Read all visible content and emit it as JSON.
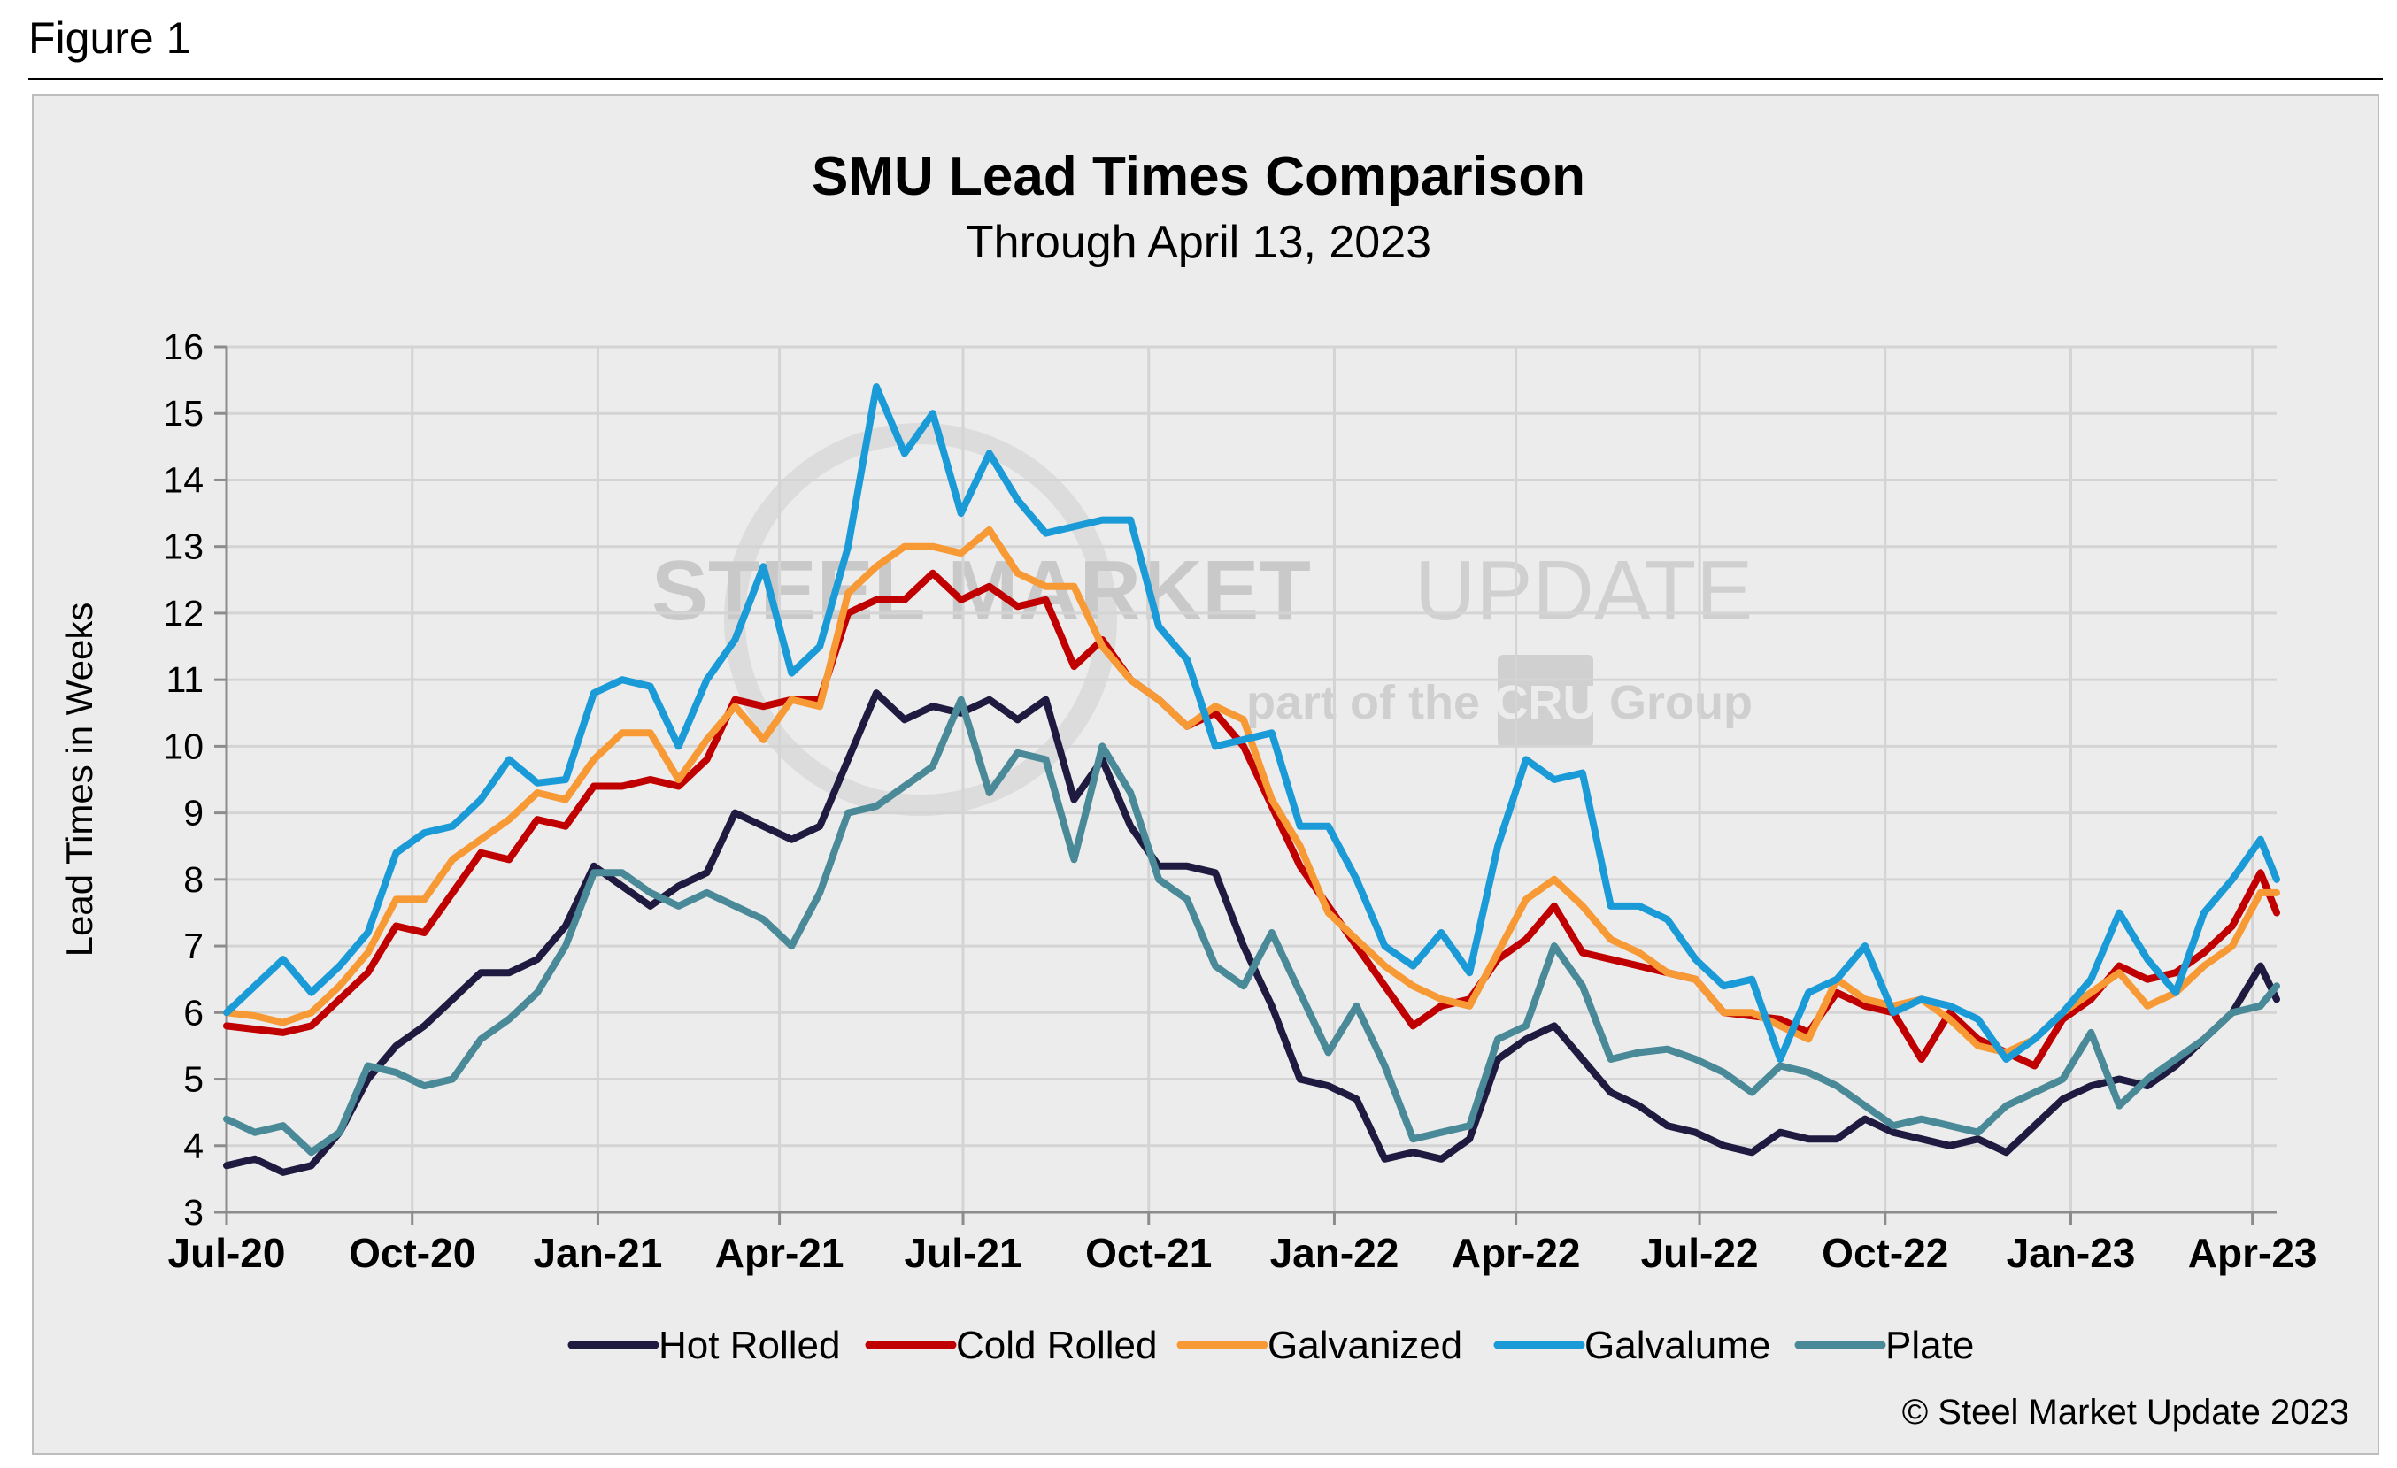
{
  "figure_label": "Figure 1",
  "copyright": "© Steel Market Update 2023",
  "watermark": {
    "line1_bold": "STEEL MARKET",
    "line1_thin": "UPDATE",
    "line2_pre": "part of the",
    "line2_logo": "CRU",
    "line2_post": "Group"
  },
  "chart_data": {
    "type": "line",
    "title": "SMU Lead Times Comparison",
    "subtitle": "Through April 13, 2023",
    "ylabel": "Lead Times in Weeks",
    "xlabel": "",
    "ylim": [
      3,
      16
    ],
    "yticks": [
      3,
      4,
      5,
      6,
      7,
      8,
      9,
      10,
      11,
      12,
      13,
      14,
      15,
      16
    ],
    "grid": true,
    "legend_position": "bottom",
    "x_tick_labels": [
      "Jul-20",
      "Oct-20",
      "Jan-21",
      "Apr-21",
      "Jul-21",
      "Oct-21",
      "Jan-22",
      "Apr-22",
      "Jul-22",
      "Oct-22",
      "Jan-23",
      "Apr-23"
    ],
    "x_tick_dates": [
      "2020-07-01",
      "2020-10-01",
      "2021-01-01",
      "2021-04-01",
      "2021-07-01",
      "2021-10-01",
      "2022-01-01",
      "2022-04-01",
      "2022-07-01",
      "2022-10-01",
      "2023-01-01",
      "2023-04-01"
    ],
    "x_range": [
      "2020-07-01",
      "2023-04-13"
    ],
    "dates": [
      "2020-07-01",
      "2020-07-15",
      "2020-07-29",
      "2020-08-12",
      "2020-08-26",
      "2020-09-09",
      "2020-09-23",
      "2020-10-07",
      "2020-10-21",
      "2020-11-04",
      "2020-11-18",
      "2020-12-02",
      "2020-12-16",
      "2020-12-30",
      "2021-01-13",
      "2021-01-27",
      "2021-02-10",
      "2021-02-24",
      "2021-03-10",
      "2021-03-24",
      "2021-04-07",
      "2021-04-21",
      "2021-05-05",
      "2021-05-19",
      "2021-06-02",
      "2021-06-16",
      "2021-06-30",
      "2021-07-14",
      "2021-07-28",
      "2021-08-11",
      "2021-08-25",
      "2021-09-08",
      "2021-09-22",
      "2021-10-06",
      "2021-10-20",
      "2021-11-03",
      "2021-11-17",
      "2021-12-01",
      "2021-12-15",
      "2021-12-29",
      "2022-01-12",
      "2022-01-26",
      "2022-02-09",
      "2022-02-23",
      "2022-03-09",
      "2022-03-23",
      "2022-04-06",
      "2022-04-20",
      "2022-05-04",
      "2022-05-18",
      "2022-06-01",
      "2022-06-15",
      "2022-06-29",
      "2022-07-13",
      "2022-07-27",
      "2022-08-10",
      "2022-08-24",
      "2022-09-07",
      "2022-09-21",
      "2022-10-05",
      "2022-10-19",
      "2022-11-02",
      "2022-11-16",
      "2022-11-30",
      "2022-12-14",
      "2022-12-28",
      "2023-01-11",
      "2023-01-25",
      "2023-02-08",
      "2023-02-22",
      "2023-03-08",
      "2023-03-22",
      "2023-04-05",
      "2023-04-13"
    ],
    "series": [
      {
        "name": "Hot Rolled",
        "color": "#1f1a3f",
        "values": [
          3.7,
          3.8,
          3.6,
          3.7,
          4.2,
          5.0,
          5.5,
          5.8,
          6.2,
          6.6,
          6.6,
          6.8,
          7.3,
          8.2,
          7.9,
          7.6,
          7.9,
          8.1,
          9.0,
          8.8,
          8.6,
          8.8,
          9.8,
          10.8,
          10.4,
          10.6,
          10.5,
          10.7,
          10.4,
          10.7,
          9.2,
          9.8,
          8.8,
          8.2,
          8.2,
          8.1,
          7.0,
          6.1,
          5.0,
          4.9,
          4.7,
          3.8,
          3.9,
          3.8,
          4.1,
          5.3,
          5.6,
          5.8,
          5.3,
          4.8,
          4.6,
          4.3,
          4.2,
          4.0,
          3.9,
          4.2,
          4.1,
          4.1,
          4.4,
          4.2,
          4.1,
          4.0,
          4.1,
          3.9,
          4.3,
          4.7,
          4.9,
          5.0,
          4.9,
          5.2,
          5.6,
          6.0,
          6.7,
          6.2
        ]
      },
      {
        "name": "Cold Rolled",
        "color": "#c00000",
        "values": [
          5.8,
          5.75,
          5.7,
          5.8,
          6.2,
          6.6,
          7.3,
          7.2,
          7.8,
          8.4,
          8.3,
          8.9,
          8.8,
          9.4,
          9.4,
          9.5,
          9.4,
          9.8,
          10.7,
          10.6,
          10.7,
          10.7,
          12.0,
          12.2,
          12.2,
          12.6,
          12.2,
          12.4,
          12.1,
          12.2,
          11.2,
          11.6,
          11.0,
          10.7,
          10.3,
          10.5,
          10.0,
          9.1,
          8.2,
          7.6,
          7.0,
          6.4,
          5.8,
          6.1,
          6.2,
          6.8,
          7.1,
          7.6,
          6.9,
          6.8,
          6.7,
          6.6,
          6.5,
          6.0,
          5.95,
          5.9,
          5.7,
          6.3,
          6.1,
          6.0,
          5.3,
          6.0,
          5.6,
          5.4,
          5.2,
          5.9,
          6.2,
          6.7,
          6.5,
          6.6,
          6.9,
          7.3,
          8.1,
          7.5
        ]
      },
      {
        "name": "Galvanized",
        "color": "#f79a35",
        "values": [
          6.0,
          5.95,
          5.85,
          6.0,
          6.4,
          6.9,
          7.7,
          7.7,
          8.3,
          8.6,
          8.9,
          9.3,
          9.2,
          9.8,
          10.2,
          10.2,
          9.5,
          10.1,
          10.6,
          10.1,
          10.7,
          10.6,
          12.3,
          12.7,
          13.0,
          13.0,
          12.9,
          13.25,
          12.6,
          12.4,
          12.4,
          11.5,
          11.0,
          10.7,
          10.3,
          10.6,
          10.4,
          9.2,
          8.5,
          7.5,
          7.1,
          6.7,
          6.4,
          6.2,
          6.1,
          6.9,
          7.7,
          8.0,
          7.6,
          7.1,
          6.9,
          6.6,
          6.5,
          6.0,
          6.0,
          5.8,
          5.6,
          6.5,
          6.2,
          6.1,
          6.2,
          5.9,
          5.5,
          5.4,
          5.6,
          6.0,
          6.3,
          6.6,
          6.1,
          6.3,
          6.7,
          7.0,
          7.8,
          7.8
        ]
      },
      {
        "name": "Galvalume",
        "color": "#1a9ad6",
        "values": [
          6.0,
          6.4,
          6.8,
          6.3,
          6.7,
          7.2,
          8.4,
          8.7,
          8.8,
          9.2,
          9.8,
          9.45,
          9.5,
          10.8,
          11.0,
          10.9,
          10.0,
          11.0,
          11.6,
          12.7,
          11.1,
          11.5,
          13.0,
          15.4,
          14.4,
          15.0,
          13.5,
          14.4,
          13.7,
          13.2,
          13.3,
          13.4,
          13.4,
          11.8,
          11.3,
          10.0,
          10.1,
          10.2,
          8.8,
          8.8,
          8.0,
          7.0,
          6.7,
          7.2,
          6.6,
          8.5,
          9.8,
          9.5,
          9.6,
          7.6,
          7.6,
          7.4,
          6.8,
          6.4,
          6.5,
          5.3,
          6.3,
          6.5,
          7.0,
          6.0,
          6.2,
          6.1,
          5.9,
          5.3,
          5.6,
          6.0,
          6.5,
          7.5,
          6.8,
          6.3,
          7.5,
          8.0,
          8.6,
          8.0
        ]
      },
      {
        "name": "Plate",
        "color": "#4a8a98",
        "values": [
          4.4,
          4.2,
          4.3,
          3.9,
          4.2,
          5.2,
          5.1,
          4.9,
          5.0,
          5.6,
          5.9,
          6.3,
          7.0,
          8.1,
          8.1,
          7.8,
          7.6,
          7.8,
          7.6,
          7.4,
          7.0,
          7.8,
          9.0,
          9.1,
          9.4,
          9.7,
          10.7,
          9.3,
          9.9,
          9.8,
          8.3,
          10.0,
          9.3,
          8.0,
          7.7,
          6.7,
          6.4,
          7.2,
          6.3,
          5.4,
          6.1,
          5.2,
          4.1,
          4.2,
          4.3,
          5.6,
          5.8,
          7.0,
          6.4,
          5.3,
          5.4,
          5.45,
          5.3,
          5.1,
          4.8,
          5.2,
          5.1,
          4.9,
          4.6,
          4.3,
          4.4,
          4.3,
          4.2,
          4.6,
          4.8,
          5.0,
          5.7,
          4.6,
          5.0,
          5.3,
          5.6,
          6.0,
          6.1,
          6.4
        ]
      }
    ]
  }
}
